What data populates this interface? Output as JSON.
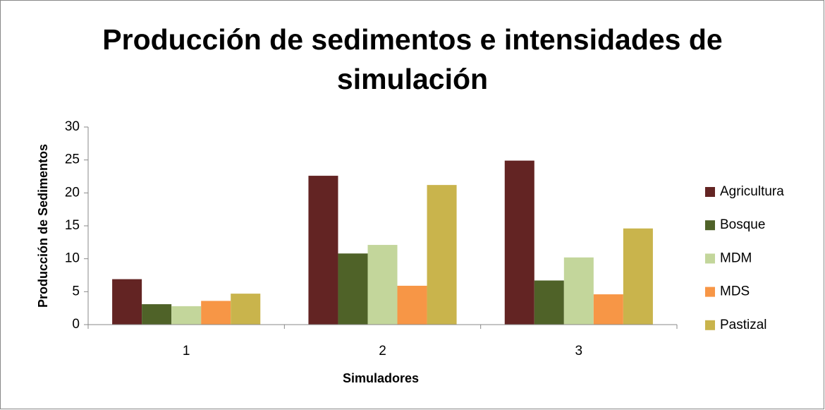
{
  "chart_data": {
    "type": "bar",
    "title": "Producción de sedimentos e intensidades de simulación",
    "x_label": "Simuladores",
    "y_label": "Producción de Sedimentos",
    "categories": [
      "1",
      "2",
      "3"
    ],
    "series": [
      {
        "name": "Agricultura",
        "color": "#632423",
        "values": [
          6.9,
          22.6,
          24.9
        ]
      },
      {
        "name": "Bosque",
        "color": "#4f6228",
        "values": [
          3.1,
          10.8,
          6.7
        ]
      },
      {
        "name": "MDM",
        "color": "#c3d69b",
        "values": [
          2.8,
          12.1,
          10.2
        ]
      },
      {
        "name": "MDS",
        "color": "#f79646",
        "values": [
          3.6,
          5.9,
          4.6
        ]
      },
      {
        "name": "Pastizal",
        "color": "#c9b44c",
        "values": [
          4.7,
          21.2,
          14.6
        ]
      }
    ],
    "ylim": [
      0,
      30
    ],
    "yticks": [
      0,
      5,
      10,
      15,
      20,
      25,
      30
    ],
    "legend": "right"
  }
}
